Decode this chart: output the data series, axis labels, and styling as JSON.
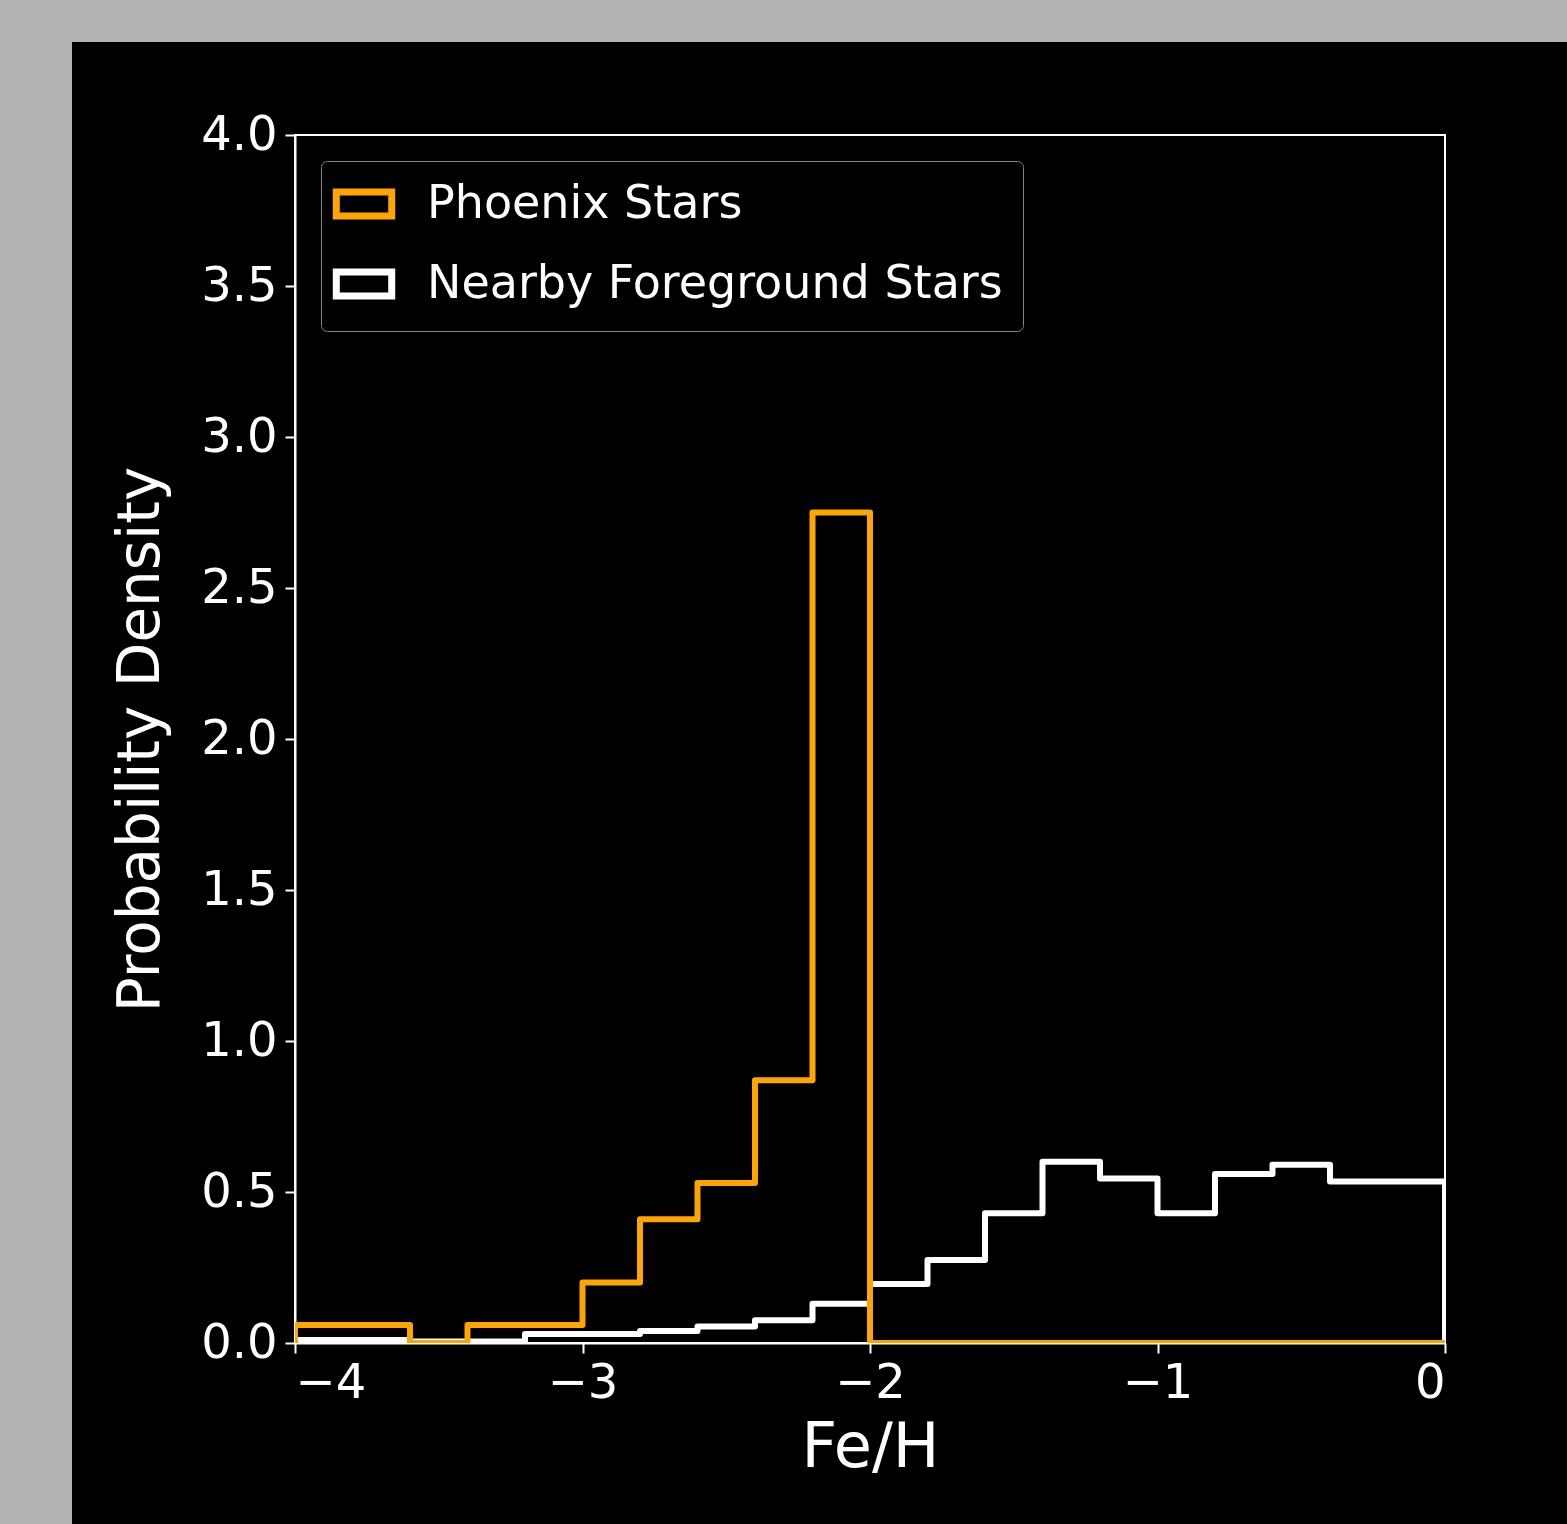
{
  "chart_data": {
    "type": "histogram",
    "xlabel": "Fe/H",
    "ylabel": "Probability Density",
    "bins": [
      -4,
      -3.8,
      -3.6,
      -3.4,
      -3.2,
      -3,
      -2.8,
      -2.6,
      -2.4,
      -2.2,
      -2,
      -1.8,
      -1.6,
      -1.4,
      -1.2,
      -1,
      -0.8,
      -0.6,
      -0.4,
      -0.2,
      0
    ],
    "series": [
      {
        "name": "Phoenix Stars",
        "color": "#ffa500",
        "values": [
          0.06,
          0.06,
          0,
          0.06,
          0.06,
          0.2,
          0.41,
          0.53,
          0.87,
          2.75,
          0,
          0,
          0,
          0,
          0,
          0,
          0,
          0,
          0,
          0
        ]
      },
      {
        "name": "Nearby Foreground Stars",
        "color": "#ffffff",
        "values": [
          0.01,
          0.01,
          0.005,
          0.005,
          0.03,
          0.03,
          0.04,
          0.055,
          0.075,
          0.13,
          0.195,
          0.275,
          0.43,
          0.6,
          0.545,
          0.43,
          0.56,
          0.59,
          0.535,
          0.535
        ]
      }
    ],
    "xlim": [
      -4,
      0
    ],
    "ylim": [
      0,
      4
    ],
    "xticks": [
      {
        "value": -4,
        "label": "−4"
      },
      {
        "value": -3,
        "label": "−3"
      },
      {
        "value": -2,
        "label": "−2"
      },
      {
        "value": -1,
        "label": "−1"
      },
      0
    ],
    "yticks": [
      {
        "value": 0,
        "label": "0.0"
      },
      0.5,
      {
        "value": 1,
        "label": "1.0"
      },
      1.5,
      {
        "value": 2,
        "label": "2.0"
      },
      2.5,
      {
        "value": 3,
        "label": "3.0"
      },
      3.5,
      {
        "value": 4,
        "label": "4.0"
      }
    ],
    "grid": false,
    "legend": "top left"
  }
}
